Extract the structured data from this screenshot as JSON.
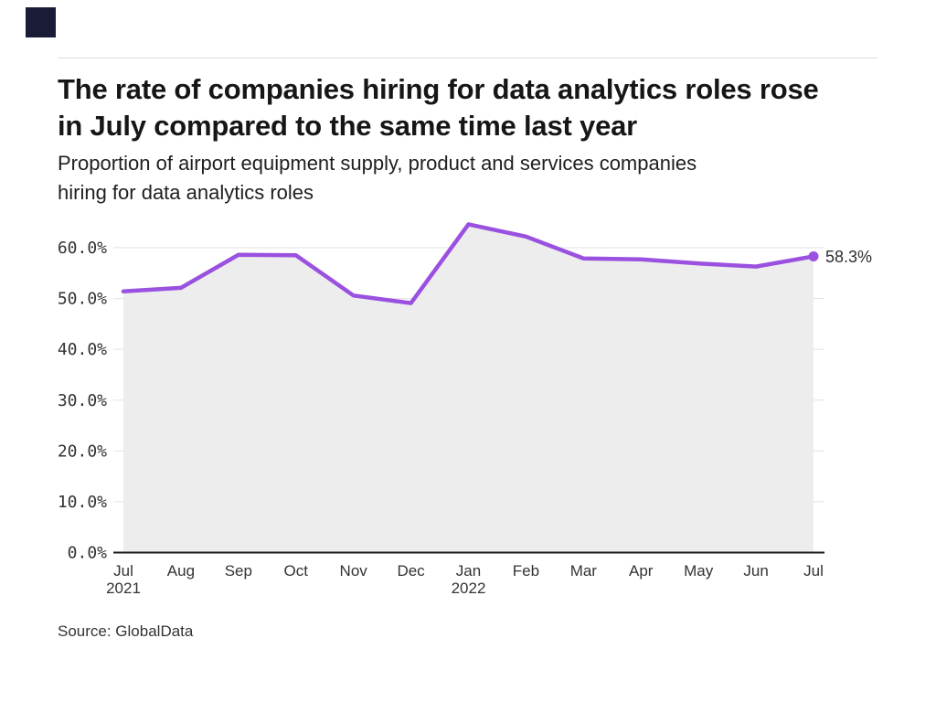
{
  "brand": {
    "logo_name": "globaldata-brand-square",
    "logo_color": "#1a1c37"
  },
  "header": {
    "title_lines": [
      "The rate of companies hiring for data analytics roles rose",
      "in July compared to the same time last year"
    ],
    "subtitle_lines": [
      "Proportion of airport equipment supply, product and services companies",
      "hiring for data analytics roles"
    ]
  },
  "source_text": "Source: GlobalData",
  "chart_data": {
    "type": "area",
    "title": "The rate of companies hiring for data analytics roles rose in July compared to the same time last year",
    "subtitle": "Proportion of airport equipment supply, product and services companies hiring for data analytics roles",
    "categories": [
      "Jul",
      "Aug",
      "Sep",
      "Oct",
      "Nov",
      "Dec",
      "Jan",
      "Feb",
      "Mar",
      "Apr",
      "May",
      "Jun",
      "Jul"
    ],
    "year_marks": [
      {
        "index": 0,
        "label": "2021"
      },
      {
        "index": 6,
        "label": "2022"
      }
    ],
    "values": [
      51.4,
      52.1,
      58.6,
      58.5,
      50.6,
      49.1,
      64.6,
      62.2,
      57.9,
      57.7,
      56.9,
      56.3,
      58.3
    ],
    "end_label": "58.3%",
    "ylim": [
      0,
      60
    ],
    "ytick_labels": [
      "0.0%",
      "10.0%",
      "20.0%",
      "30.0%",
      "40.0%",
      "50.0%",
      "60.0%"
    ],
    "ytick_values": [
      0,
      10,
      20,
      30,
      40,
      50,
      60
    ],
    "xlabel": "",
    "ylabel": "",
    "grid": true,
    "legend": "none",
    "line_color": "#9b51e0",
    "fill_color": "#ededed",
    "grid_color": "#e2e2e2",
    "axis_color": "#1a1a1a",
    "label_color": "#333333"
  }
}
